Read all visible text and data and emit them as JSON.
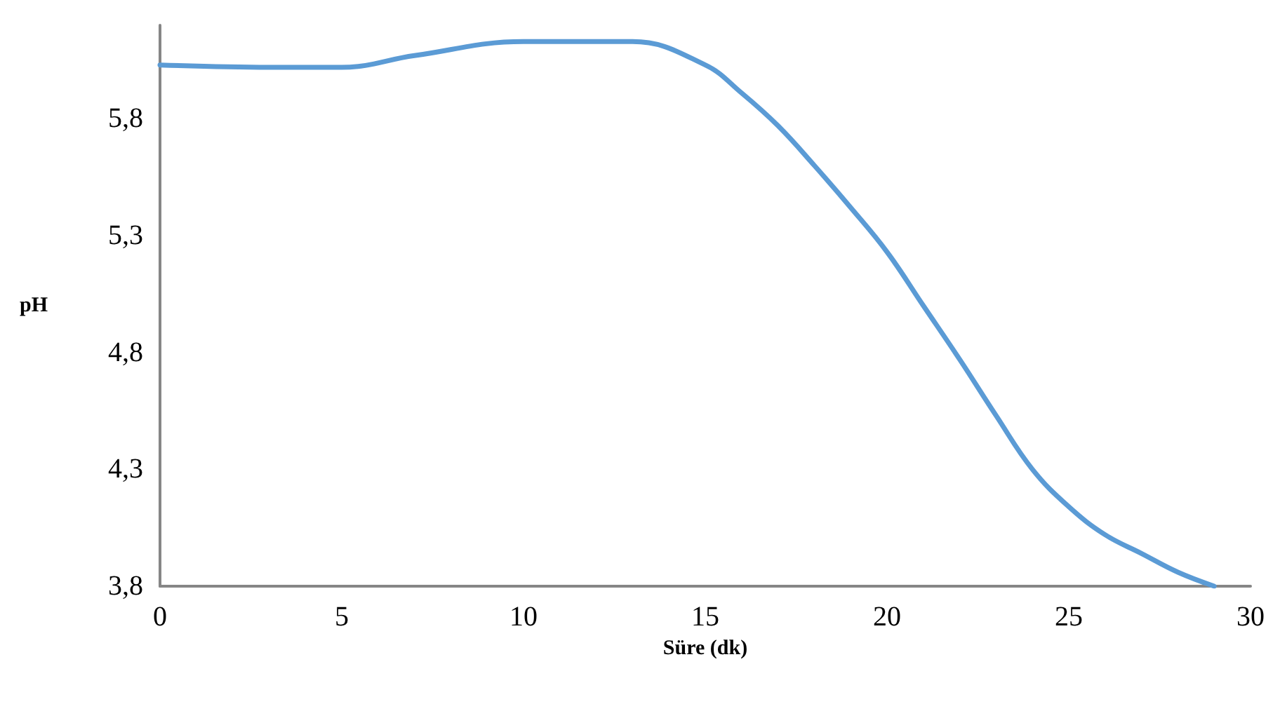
{
  "chart_data": {
    "type": "line",
    "xlabel": "Süre (dk)",
    "ylabel": "pH",
    "x": [
      0,
      3,
      5,
      7,
      10,
      13,
      15,
      16,
      17,
      18,
      19,
      20,
      21,
      22,
      23,
      24,
      25,
      26,
      27,
      28,
      29
    ],
    "series": [
      {
        "color": "#5b9bd5",
        "values": [
          6.03,
          6.02,
          6.02,
          6.07,
          6.13,
          6.13,
          6.03,
          5.91,
          5.77,
          5.6,
          5.42,
          5.23,
          5.0,
          4.77,
          4.53,
          4.3,
          4.14,
          4.02,
          3.94,
          3.86,
          3.8
        ]
      }
    ],
    "xlim": [
      0,
      30
    ],
    "xticks": [
      0,
      5,
      10,
      15,
      20,
      25,
      30
    ],
    "ylim": [
      3.8,
      6.2
    ],
    "yticks": [
      {
        "value": 3.8,
        "label": "3,8"
      },
      {
        "value": 4.3,
        "label": "4,3"
      },
      {
        "value": 4.8,
        "label": "4,8"
      },
      {
        "value": 5.3,
        "label": "5,3"
      },
      {
        "value": 5.8,
        "label": "5,8"
      }
    ],
    "grid": false,
    "marker": "none",
    "line_style": "solid"
  }
}
